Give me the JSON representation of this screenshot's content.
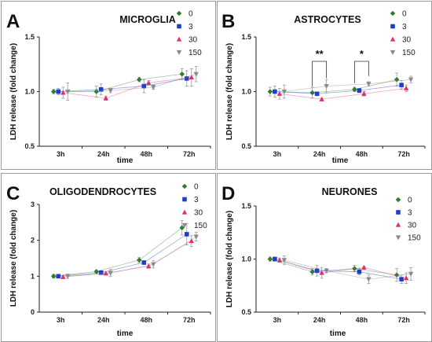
{
  "chart_data": [
    {
      "type": "line",
      "panel": "A",
      "title": "MICROGLIA",
      "xlabel": "time",
      "ylabel": "LDH release (fold change)",
      "categories": [
        "3h",
        "24h",
        "48h",
        "72h"
      ],
      "ylim": [
        0.5,
        1.5
      ],
      "yticks": [
        "0.5",
        "1.0",
        "1.5"
      ],
      "series": [
        {
          "name": "0",
          "color": "#2e7d32",
          "marker": "diamond",
          "values": [
            1.0,
            1.0,
            1.11,
            1.16
          ],
          "errors": [
            0.02,
            0.05,
            0.02,
            0.05
          ]
        },
        {
          "name": "3",
          "color": "#1a3fd0",
          "marker": "square",
          "values": [
            1.0,
            1.02,
            1.05,
            1.12
          ],
          "errors": [
            0.03,
            0.05,
            0.06,
            0.07
          ]
        },
        {
          "name": "30",
          "color": "#e0306a",
          "marker": "triangle-up",
          "values": [
            0.99,
            0.94,
            1.08,
            1.13
          ],
          "errors": [
            0.05,
            0.02,
            0.02,
            0.08
          ]
        },
        {
          "name": "150",
          "color": "#8a8a8a",
          "marker": "triangle-down",
          "values": [
            1.0,
            1.01,
            1.04,
            1.16
          ],
          "errors": [
            0.08,
            0.02,
            0.02,
            0.07
          ]
        }
      ],
      "annotations": []
    },
    {
      "type": "line",
      "panel": "B",
      "title": "ASTROCYTES",
      "xlabel": "time",
      "ylabel": "LDH release (fold change)",
      "categories": [
        "3h",
        "24h",
        "48h",
        "72h"
      ],
      "ylim": [
        0.5,
        1.5
      ],
      "yticks": [
        "0.5",
        "1.0",
        "1.5"
      ],
      "series": [
        {
          "name": "0",
          "color": "#2e7d32",
          "marker": "diamond",
          "values": [
            1.0,
            0.99,
            1.02,
            1.11
          ],
          "errors": [
            0.04,
            0.05,
            0.02,
            0.06
          ]
        },
        {
          "name": "3",
          "color": "#1a3fd0",
          "marker": "square",
          "values": [
            1.0,
            0.98,
            1.01,
            1.06
          ],
          "errors": [
            0.05,
            0.01,
            0.02,
            0.04
          ]
        },
        {
          "name": "30",
          "color": "#e0306a",
          "marker": "triangle-up",
          "values": [
            0.98,
            0.93,
            0.98,
            1.03
          ],
          "errors": [
            0.05,
            0.01,
            0.02,
            0.03
          ]
        },
        {
          "name": "150",
          "color": "#8a8a8a",
          "marker": "triangle-down",
          "values": [
            1.0,
            1.05,
            1.07,
            1.11
          ],
          "errors": [
            0.06,
            0.06,
            0.02,
            0.03
          ]
        }
      ],
      "annotations": [
        {
          "text": "**",
          "category": "24h"
        },
        {
          "text": "*",
          "category": "48h"
        }
      ]
    },
    {
      "type": "line",
      "panel": "C",
      "title": "OLIGODENDROCYTES",
      "xlabel": "time",
      "ylabel": "LDH release (fold change)",
      "categories": [
        "3h",
        "24h",
        "48h",
        "72h"
      ],
      "ylim": [
        0,
        3
      ],
      "yticks": [
        "0",
        "1",
        "2",
        "3"
      ],
      "series": [
        {
          "name": "0",
          "color": "#2e7d32",
          "marker": "diamond",
          "values": [
            1.0,
            1.13,
            1.45,
            2.35
          ],
          "errors": [
            0.05,
            0.03,
            0.07,
            0.2
          ]
        },
        {
          "name": "3",
          "color": "#1a3fd0",
          "marker": "square",
          "values": [
            1.0,
            1.1,
            1.38,
            2.17
          ],
          "errors": [
            0.05,
            0.04,
            0.05,
            0.3
          ]
        },
        {
          "name": "30",
          "color": "#e0306a",
          "marker": "triangle-up",
          "values": [
            0.98,
            1.08,
            1.28,
            1.98
          ],
          "errors": [
            0.04,
            0.05,
            0.06,
            0.15
          ]
        },
        {
          "name": "150",
          "color": "#8a8a8a",
          "marker": "triangle-down",
          "values": [
            1.0,
            1.09,
            1.33,
            2.1
          ],
          "errors": [
            0.06,
            0.1,
            0.1,
            0.12
          ]
        }
      ],
      "annotations": []
    },
    {
      "type": "line",
      "panel": "D",
      "title": "NEURONES",
      "xlabel": "time",
      "ylabel": "LDH release (fold change)",
      "categories": [
        "3h",
        "24h",
        "48h",
        "72h"
      ],
      "ylim": [
        0.5,
        1.5
      ],
      "yticks": [
        "0.5",
        "1.0",
        "1.5"
      ],
      "series": [
        {
          "name": "0",
          "color": "#2e7d32",
          "marker": "diamond",
          "values": [
            1.0,
            0.88,
            0.91,
            0.85
          ],
          "errors": [
            0.02,
            0.03,
            0.03,
            0.06
          ]
        },
        {
          "name": "3",
          "color": "#1a3fd0",
          "marker": "square",
          "values": [
            1.0,
            0.89,
            0.88,
            0.81
          ],
          "errors": [
            0.02,
            0.05,
            0.03,
            0.04
          ]
        },
        {
          "name": "30",
          "color": "#e0306a",
          "marker": "triangle-up",
          "values": [
            0.99,
            0.87,
            0.92,
            0.82
          ],
          "errors": [
            0.02,
            0.05,
            0.01,
            0.05
          ]
        },
        {
          "name": "150",
          "color": "#8a8a8a",
          "marker": "triangle-down",
          "values": [
            0.99,
            0.89,
            0.81,
            0.86
          ],
          "errors": [
            0.04,
            0.02,
            0.04,
            0.06
          ]
        }
      ],
      "annotations": []
    }
  ]
}
